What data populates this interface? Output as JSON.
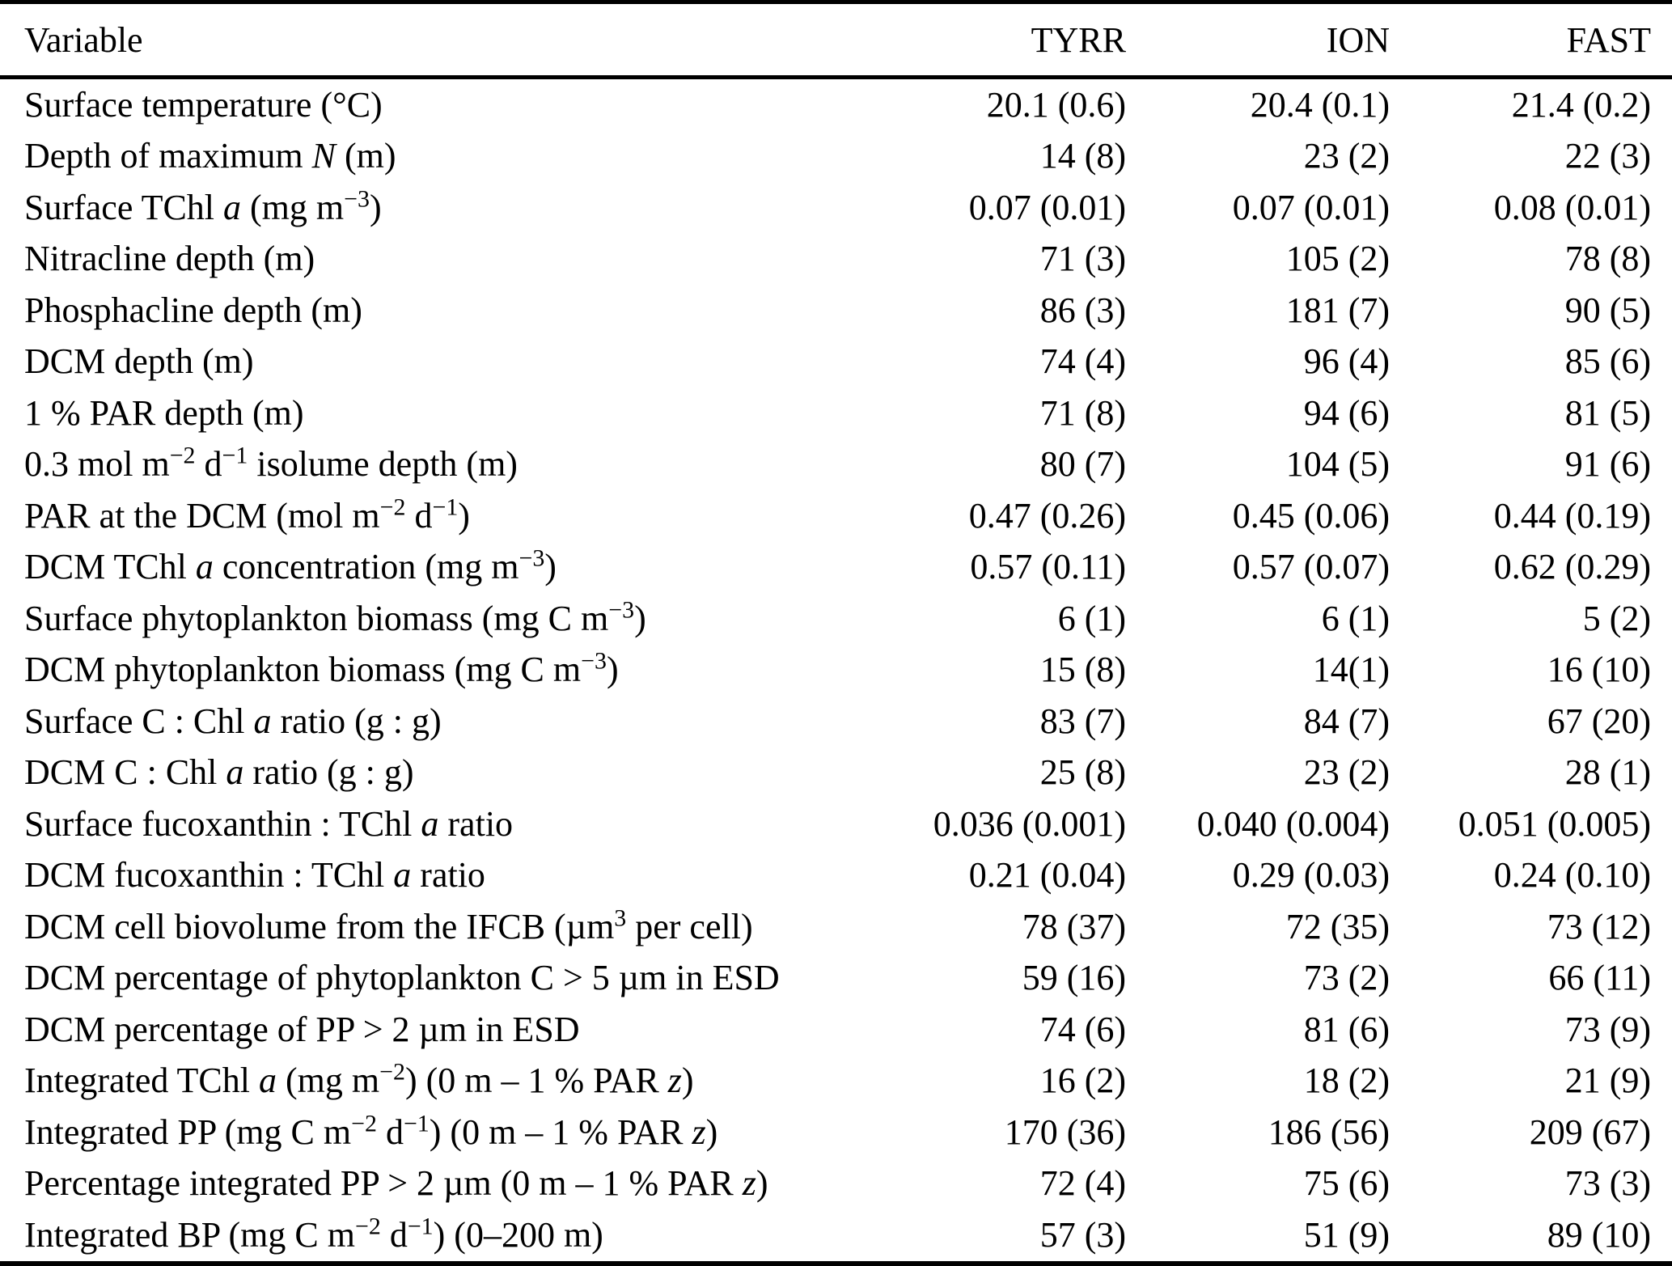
{
  "page": {
    "background_color": "#ffffff",
    "text_color": "#000000",
    "rule_color": "#000000"
  },
  "table": {
    "header": {
      "variable": "Variable",
      "stations": [
        "TYRR",
        "ION",
        "FAST"
      ]
    },
    "rows": [
      {
        "label": [
          {
            "t": "Surface temperature (°C)"
          }
        ],
        "values": [
          "20.1 (0.6)",
          "20.4 (0.1)",
          "21.4 (0.2)"
        ]
      },
      {
        "label": [
          {
            "t": "Depth of maximum "
          },
          {
            "i": "N"
          },
          {
            "t": " (m)"
          }
        ],
        "values": [
          "14 (8)",
          "23 (2)",
          "22 (3)"
        ]
      },
      {
        "label": [
          {
            "t": "Surface TChl "
          },
          {
            "i": "a"
          },
          {
            "t": " (mg m"
          },
          {
            "sup": "−3"
          },
          {
            "t": ")"
          }
        ],
        "values": [
          "0.07 (0.01)",
          "0.07 (0.01)",
          "0.08 (0.01)"
        ]
      },
      {
        "label": [
          {
            "t": "Nitracline depth (m)"
          }
        ],
        "values": [
          "71 (3)",
          "105 (2)",
          "78 (8)"
        ]
      },
      {
        "label": [
          {
            "t": "Phosphacline depth (m)"
          }
        ],
        "values": [
          "86 (3)",
          "181 (7)",
          "90 (5)"
        ]
      },
      {
        "label": [
          {
            "t": "DCM depth (m)"
          }
        ],
        "values": [
          "74 (4)",
          "96 (4)",
          "85 (6)"
        ]
      },
      {
        "label": [
          {
            "t": "1 % PAR depth (m)"
          }
        ],
        "values": [
          "71 (8)",
          "94 (6)",
          "81 (5)"
        ]
      },
      {
        "label": [
          {
            "t": "0.3 mol m"
          },
          {
            "sup": "−2"
          },
          {
            "t": " d"
          },
          {
            "sup": "−1"
          },
          {
            "t": " isolume depth (m)"
          }
        ],
        "values": [
          "80 (7)",
          "104 (5)",
          "91 (6)"
        ]
      },
      {
        "label": [
          {
            "t": "PAR at the DCM (mol m"
          },
          {
            "sup": "−2"
          },
          {
            "t": " d"
          },
          {
            "sup": "−1"
          },
          {
            "t": ")"
          }
        ],
        "values": [
          "0.47 (0.26)",
          "0.45 (0.06)",
          "0.44 (0.19)"
        ]
      },
      {
        "label": [
          {
            "t": "DCM TChl "
          },
          {
            "i": "a"
          },
          {
            "t": " concentration (mg m"
          },
          {
            "sup": "−3"
          },
          {
            "t": ")"
          }
        ],
        "values": [
          "0.57 (0.11)",
          "0.57 (0.07)",
          "0.62 (0.29)"
        ]
      },
      {
        "label": [
          {
            "t": "Surface phytoplankton biomass (mg C m"
          },
          {
            "sup": "−3"
          },
          {
            "t": ")"
          }
        ],
        "values": [
          "6 (1)",
          "6 (1)",
          "5 (2)"
        ]
      },
      {
        "label": [
          {
            "t": "DCM phytoplankton biomass (mg C m"
          },
          {
            "sup": "−3"
          },
          {
            "t": ")"
          }
        ],
        "values": [
          "15 (8)",
          "14(1)",
          "16 (10)"
        ]
      },
      {
        "label": [
          {
            "t": "Surface C : Chl "
          },
          {
            "i": "a"
          },
          {
            "t": " ratio (g : g)"
          }
        ],
        "values": [
          "83 (7)",
          "84 (7)",
          "67 (20)"
        ]
      },
      {
        "label": [
          {
            "t": "DCM C : Chl "
          },
          {
            "i": "a"
          },
          {
            "t": " ratio (g : g)"
          }
        ],
        "values": [
          "25 (8)",
          "23 (2)",
          "28 (1)"
        ]
      },
      {
        "label": [
          {
            "t": "Surface fucoxanthin : TChl "
          },
          {
            "i": "a"
          },
          {
            "t": " ratio"
          }
        ],
        "values": [
          "0.036 (0.001)",
          "0.040 (0.004)",
          "0.051 (0.005)"
        ]
      },
      {
        "label": [
          {
            "t": "DCM fucoxanthin : TChl "
          },
          {
            "i": "a"
          },
          {
            "t": " ratio"
          }
        ],
        "values": [
          "0.21 (0.04)",
          "0.29 (0.03)",
          "0.24 (0.10)"
        ]
      },
      {
        "label": [
          {
            "t": "DCM cell biovolume from the IFCB (µm"
          },
          {
            "sup": "3"
          },
          {
            "t": " per cell)"
          }
        ],
        "values": [
          "78 (37)",
          "72 (35)",
          "73 (12)"
        ]
      },
      {
        "label": [
          {
            "t": "DCM percentage of phytoplankton C > 5 µm in ESD"
          }
        ],
        "values": [
          "59 (16)",
          "73 (2)",
          "66 (11)"
        ]
      },
      {
        "label": [
          {
            "t": "DCM percentage of PP > 2 µm in ESD"
          }
        ],
        "values": [
          "74 (6)",
          "81 (6)",
          "73 (9)"
        ]
      },
      {
        "label": [
          {
            "t": "Integrated TChl "
          },
          {
            "i": "a"
          },
          {
            "t": " (mg m"
          },
          {
            "sup": "−2"
          },
          {
            "t": ") (0 m – 1 % PAR "
          },
          {
            "i": "z"
          },
          {
            "t": ")"
          }
        ],
        "values": [
          "16 (2)",
          "18 (2)",
          "21 (9)"
        ]
      },
      {
        "label": [
          {
            "t": "Integrated PP (mg C m"
          },
          {
            "sup": "−2"
          },
          {
            "t": " d"
          },
          {
            "sup": "−1"
          },
          {
            "t": ") (0 m – 1 % PAR "
          },
          {
            "i": "z"
          },
          {
            "t": ")"
          }
        ],
        "values": [
          "170 (36)",
          "186 (56)",
          "209 (67)"
        ]
      },
      {
        "label": [
          {
            "t": "Percentage integrated PP > 2 µm (0 m – 1 % PAR "
          },
          {
            "i": "z"
          },
          {
            "t": ")"
          }
        ],
        "values": [
          "72 (4)",
          "75 (6)",
          "73 (3)"
        ]
      },
      {
        "label": [
          {
            "t": "Integrated BP (mg C m"
          },
          {
            "sup": "−2"
          },
          {
            "t": " d"
          },
          {
            "sup": "−1"
          },
          {
            "t": ") (0–200 m)"
          }
        ],
        "values": [
          "57 (3)",
          "51 (9)",
          "89 (10)"
        ]
      }
    ]
  }
}
